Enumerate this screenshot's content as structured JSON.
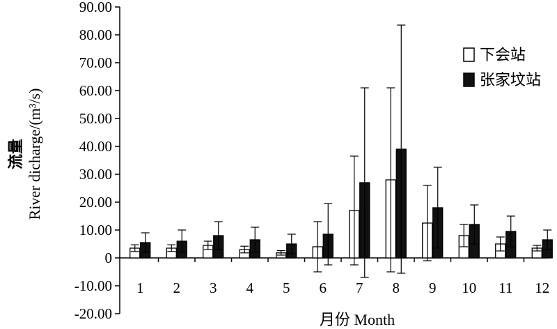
{
  "chart_data": {
    "type": "bar",
    "xlabel": "月份 Month",
    "ylabel_cn": "流量",
    "ylabel_en": "River dicharge/(m³/s)",
    "ylim": [
      -20,
      90
    ],
    "yticks": [
      "90.00",
      "80.00",
      "70.00",
      "60.00",
      "50.00",
      "40.00",
      "30.00",
      "20.00",
      "10.00",
      "0",
      "-10.00",
      "-20.00"
    ],
    "ytick_values": [
      90,
      80,
      70,
      60,
      50,
      40,
      30,
      20,
      10,
      0,
      -10,
      -20
    ],
    "categories": [
      "1",
      "2",
      "3",
      "4",
      "5",
      "6",
      "7",
      "8",
      "9",
      "10",
      "11",
      "12"
    ],
    "legend_position": "top-right",
    "series": [
      {
        "name": "下会站",
        "fill": "#ffffff",
        "values": [
          3.5,
          3.5,
          4.5,
          3.0,
          1.8,
          4.0,
          17.0,
          28.0,
          12.5,
          8.0,
          5.0,
          3.5
        ],
        "errors": [
          1.2,
          1.2,
          1.5,
          1.2,
          0.8,
          9.0,
          19.5,
          33.0,
          13.5,
          4.0,
          2.5,
          1.0
        ]
      },
      {
        "name": "张家坟站",
        "fill": "#111111",
        "values": [
          5.5,
          6.0,
          8.0,
          6.5,
          5.0,
          8.5,
          27.0,
          39.0,
          18.0,
          12.0,
          9.5,
          6.5
        ],
        "errors": [
          3.5,
          4.0,
          5.0,
          4.5,
          3.5,
          11.0,
          34.0,
          44.5,
          14.5,
          7.0,
          5.5,
          3.5
        ]
      }
    ]
  }
}
